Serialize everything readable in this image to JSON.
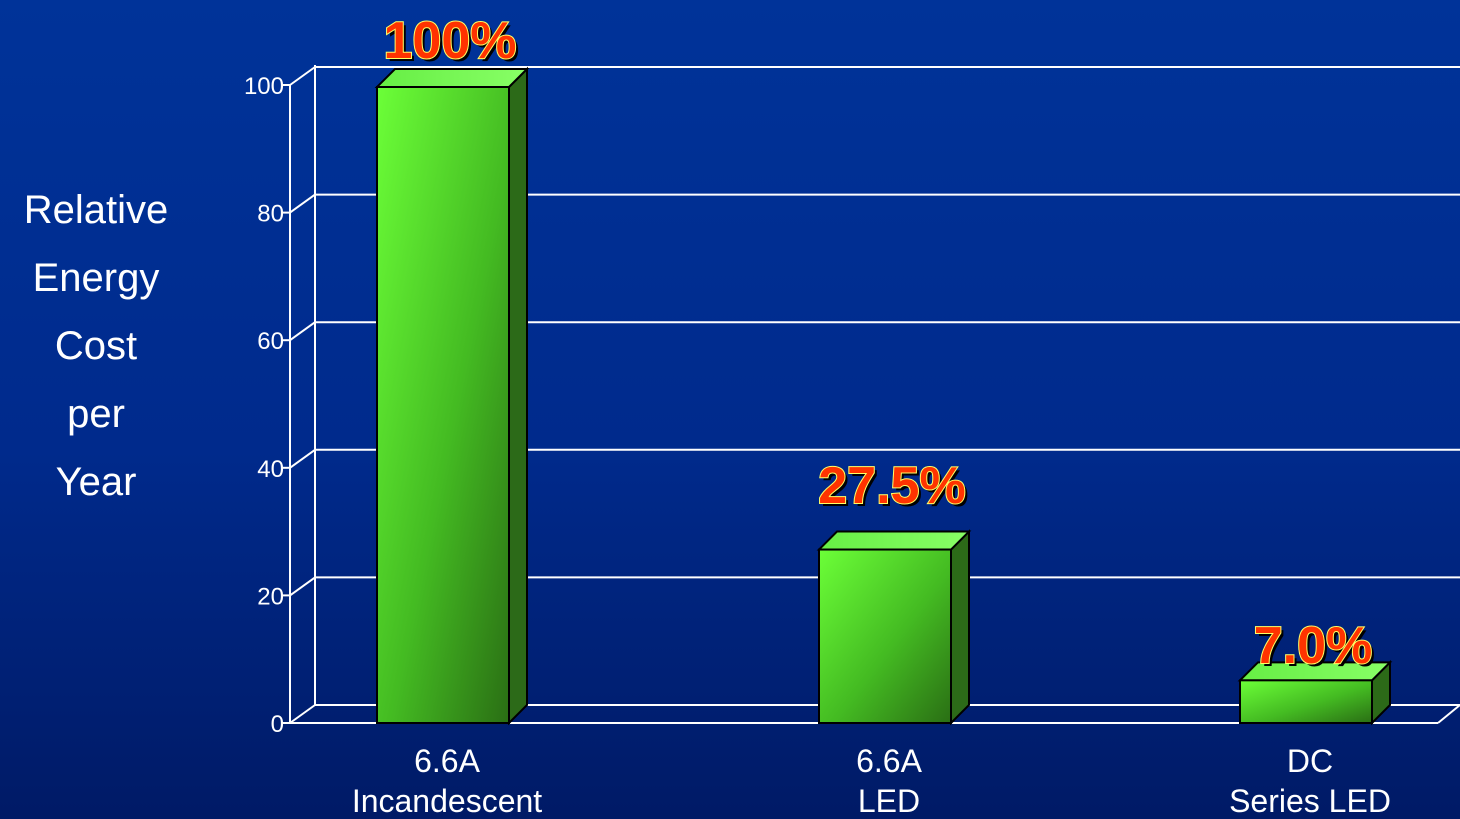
{
  "chart_data": {
    "type": "bar",
    "title": "",
    "ylabel_lines": [
      "Relative",
      "Energy",
      "Cost",
      "per",
      "Year"
    ],
    "xlabel": "",
    "categories": [
      [
        "6.6A",
        "Incandescent"
      ],
      [
        "6.6A",
        "LED"
      ],
      [
        "DC",
        "Series LED"
      ]
    ],
    "values": [
      100,
      27.5,
      7.0
    ],
    "data_labels": [
      "100%",
      "27.5%",
      "7.0%"
    ],
    "ylim": [
      0,
      100
    ],
    "yticks": [
      "0",
      "20",
      "40",
      "60",
      "80",
      "100"
    ],
    "grid": true,
    "three_d": true,
    "colors": {
      "background": "#003399",
      "bar_light": "#66ff33",
      "bar_dark": "#2a6b14",
      "grid": "#ffffff",
      "label_fill": "#ff3300",
      "label_outline": "#ffff66"
    }
  }
}
